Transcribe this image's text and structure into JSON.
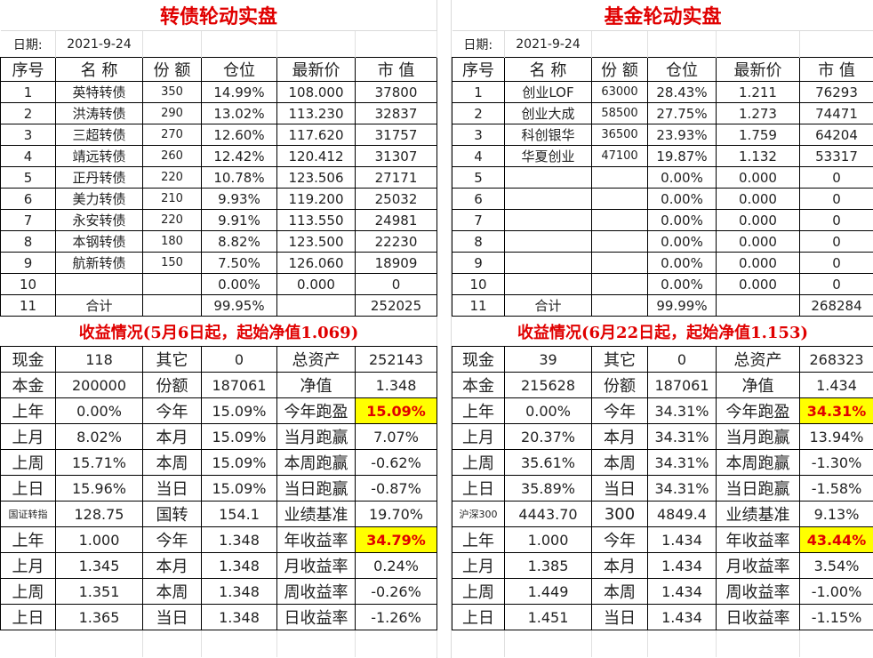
{
  "colors": {
    "title": "#e00000",
    "highlight_bg": "#ffff00",
    "highlight_text": "#e00000"
  },
  "left": {
    "title": "转债轮动实盘",
    "date_label": "日期:",
    "date": "2021-9-24",
    "headers": [
      "序号",
      "名  称",
      "份  额",
      "仓位",
      "最新价",
      "市  值"
    ],
    "rows": [
      [
        "1",
        "英特转债",
        "350",
        "14.99%",
        "108.000",
        "37800"
      ],
      [
        "2",
        "洪涛转债",
        "290",
        "13.02%",
        "113.230",
        "32837"
      ],
      [
        "3",
        "三超转债",
        "270",
        "12.60%",
        "117.620",
        "31757"
      ],
      [
        "4",
        "靖远转债",
        "260",
        "12.42%",
        "120.412",
        "31307"
      ],
      [
        "5",
        "正丹转债",
        "220",
        "10.78%",
        "123.506",
        "27171"
      ],
      [
        "6",
        "美力转债",
        "210",
        "9.93%",
        "119.200",
        "25032"
      ],
      [
        "7",
        "永安转债",
        "220",
        "9.91%",
        "113.550",
        "24981"
      ],
      [
        "8",
        "本钢转债",
        "180",
        "8.82%",
        "123.500",
        "22230"
      ],
      [
        "9",
        "航新转债",
        "150",
        "7.50%",
        "126.060",
        "18909"
      ],
      [
        "10",
        "",
        "",
        "0.00%",
        "0.000",
        "0"
      ],
      [
        "11",
        "合计",
        "",
        "99.95%",
        "",
        "252025"
      ]
    ],
    "summary_title": "收益情况(5月6日起，起始净值1.069)",
    "summary": [
      [
        "现金",
        "118",
        "其它",
        "0",
        "总资产",
        "252143"
      ],
      [
        "本金",
        "200000",
        "份额",
        "187061",
        "净值",
        "1.348"
      ],
      [
        "上年",
        "0.00%",
        "今年",
        "15.09%",
        "今年跑盈",
        "15.09%"
      ],
      [
        "上月",
        "8.02%",
        "本月",
        "15.09%",
        "当月跑赢",
        "7.07%"
      ],
      [
        "上周",
        "15.71%",
        "本周",
        "15.09%",
        "本周跑赢",
        "-0.62%"
      ],
      [
        "上日",
        "15.96%",
        "当日",
        "15.09%",
        "当日跑赢",
        "-0.87%"
      ],
      [
        "国证转指",
        "128.75",
        "国转",
        "154.1",
        "业绩基准",
        "19.70%"
      ],
      [
        "上年",
        "1.000",
        "今年",
        "1.348",
        "年收益率",
        "34.79%"
      ],
      [
        "上月",
        "1.345",
        "本月",
        "1.348",
        "月收益率",
        "0.24%"
      ],
      [
        "上周",
        "1.351",
        "本周",
        "1.348",
        "周收益率",
        "-0.26%"
      ],
      [
        "上日",
        "1.365",
        "当日",
        "1.348",
        "日收益率",
        "-1.26%"
      ]
    ]
  },
  "right": {
    "title": "基金轮动实盘",
    "date_label": "日期:",
    "date": "2021-9-24",
    "headers": [
      "序号",
      "名  称",
      "份  额",
      "仓位",
      "最新价",
      "市  值"
    ],
    "rows": [
      [
        "1",
        "创业LOF",
        "63000",
        "28.43%",
        "1.211",
        "76293"
      ],
      [
        "2",
        "创业大成",
        "58500",
        "27.75%",
        "1.273",
        "74471"
      ],
      [
        "3",
        "科创银华",
        "36500",
        "23.93%",
        "1.759",
        "64204"
      ],
      [
        "4",
        "华夏创业",
        "47100",
        "19.87%",
        "1.132",
        "53317"
      ],
      [
        "5",
        "",
        "",
        "0.00%",
        "0.000",
        "0"
      ],
      [
        "6",
        "",
        "",
        "0.00%",
        "0.000",
        "0"
      ],
      [
        "7",
        "",
        "",
        "0.00%",
        "0.000",
        "0"
      ],
      [
        "8",
        "",
        "",
        "0.00%",
        "0.000",
        "0"
      ],
      [
        "9",
        "",
        "",
        "0.00%",
        "0.000",
        "0"
      ],
      [
        "10",
        "",
        "",
        "0.00%",
        "0.000",
        "0"
      ],
      [
        "11",
        "合计",
        "",
        "99.99%",
        "",
        "268284"
      ]
    ],
    "summary_title": "收益情况(6月22日起，起始净值1.153)",
    "summary": [
      [
        "现金",
        "39",
        "其它",
        "0",
        "总资产",
        "268323"
      ],
      [
        "本金",
        "215628",
        "份额",
        "187061",
        "净值",
        "1.434"
      ],
      [
        "上年",
        "0.00%",
        "今年",
        "34.31%",
        "今年跑盈",
        "34.31%"
      ],
      [
        "上月",
        "20.37%",
        "本月",
        "34.31%",
        "当月跑赢",
        "13.94%"
      ],
      [
        "上周",
        "35.61%",
        "本周",
        "34.31%",
        "本周跑赢",
        "-1.30%"
      ],
      [
        "上日",
        "35.89%",
        "当日",
        "34.31%",
        "当日跑赢",
        "-1.58%"
      ],
      [
        "沪深300",
        "4443.70",
        "300",
        "4849.4",
        "业绩基准",
        "9.13%"
      ],
      [
        "上年",
        "1.000",
        "今年",
        "1.434",
        "年收益率",
        "43.44%"
      ],
      [
        "上月",
        "1.385",
        "本月",
        "1.434",
        "月收益率",
        "3.54%"
      ],
      [
        "上周",
        "1.449",
        "本周",
        "1.434",
        "周收益率",
        "-1.00%"
      ],
      [
        "上日",
        "1.451",
        "当日",
        "1.434",
        "日收益率",
        "-1.15%"
      ]
    ]
  }
}
